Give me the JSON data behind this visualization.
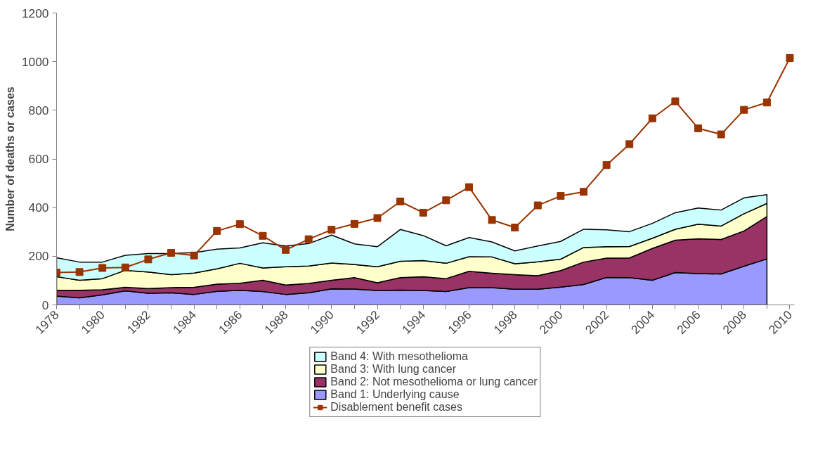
{
  "chart_data": {
    "type": "area",
    "stacked": true,
    "ylabel": "Number of deaths or cases",
    "x": [
      1978,
      1979,
      1980,
      1981,
      1982,
      1983,
      1984,
      1985,
      1986,
      1987,
      1988,
      1989,
      1990,
      1991,
      1992,
      1993,
      1994,
      1995,
      1996,
      1997,
      1998,
      1999,
      2000,
      2001,
      2002,
      2003,
      2004,
      2005,
      2006,
      2007,
      2008,
      2009
    ],
    "series": [
      {
        "name": "Band 1: Underlying cause",
        "color": "#9999ff",
        "values": [
          36,
          29,
          41,
          58,
          48,
          50,
          43,
          56,
          60,
          55,
          43,
          50,
          66,
          65,
          59,
          61,
          59,
          55,
          71,
          71,
          64,
          64,
          73,
          84,
          113,
          112,
          101,
          133,
          129,
          127,
          159,
          189
        ]
      },
      {
        "name": "Band 2: Not mesothelioma or lung cancer",
        "color": "#993366",
        "values": [
          25,
          31,
          21,
          14,
          19,
          21,
          29,
          29,
          29,
          46,
          39,
          38,
          35,
          47,
          32,
          51,
          57,
          53,
          67,
          59,
          60,
          56,
          68,
          92,
          79,
          81,
          131,
          133,
          143,
          142,
          145,
          174
        ]
      },
      {
        "name": "Band 3: With lung cancer",
        "color": "#ffffcc",
        "values": [
          55,
          41,
          46,
          70,
          68,
          53,
          59,
          63,
          82,
          51,
          75,
          72,
          71,
          54,
          66,
          67,
          66,
          63,
          60,
          67,
          45,
          57,
          47,
          60,
          47,
          47,
          42,
          45,
          60,
          55,
          71,
          54
        ]
      },
      {
        "name": "Band 4: With mesothelioma",
        "color": "#ccffff",
        "values": [
          78,
          75,
          68,
          62,
          76,
          87,
          84,
          81,
          63,
          103,
          85,
          92,
          115,
          85,
          82,
          131,
          103,
          72,
          79,
          62,
          53,
          65,
          73,
          75,
          70,
          61,
          61,
          68,
          66,
          66,
          65,
          36
        ]
      },
      {
        "name": "Disablement benefit cases",
        "type": "line",
        "marker": "square",
        "color": "#993300",
        "x": [
          1978,
          1979,
          1980,
          1981,
          1982,
          1983,
          1984,
          1985,
          1986,
          1987,
          1988,
          1989,
          1990,
          1991,
          1992,
          1993,
          1994,
          1995,
          1996,
          1997,
          1998,
          1999,
          2000,
          2001,
          2002,
          2003,
          2004,
          2005,
          2006,
          2007,
          2008,
          2009,
          2010
        ],
        "values": [
          133,
          135,
          152,
          154,
          187,
          214,
          203,
          304,
          332,
          284,
          226,
          270,
          309,
          333,
          357,
          425,
          379,
          430,
          484,
          349,
          318,
          409,
          448,
          465,
          575,
          661,
          767,
          837,
          726,
          701,
          802,
          832,
          1015
        ]
      }
    ],
    "xlim": [
      1978,
      2010.2
    ],
    "ylim": [
      0,
      1200
    ],
    "xticks": [
      1978,
      {
        "value": 1979,
        "label": null
      },
      1980,
      {
        "value": 1981,
        "label": null
      },
      1982,
      {
        "value": 1983,
        "label": null
      },
      1984,
      {
        "value": 1985,
        "label": null
      },
      1986,
      {
        "value": 1987,
        "label": null
      },
      1988,
      {
        "value": 1989,
        "label": null
      },
      1990,
      {
        "value": 1991,
        "label": null
      },
      1992,
      {
        "value": 1993,
        "label": null
      },
      1994,
      {
        "value": 1995,
        "label": null
      },
      1996,
      {
        "value": 1997,
        "label": null
      },
      1998,
      {
        "value": 1999,
        "label": null
      },
      2000,
      {
        "value": 2001,
        "label": null
      },
      2002,
      {
        "value": 2003,
        "label": null
      },
      2004,
      {
        "value": 2005,
        "label": null
      },
      2006,
      {
        "value": 2007,
        "label": null
      },
      2008,
      {
        "value": 2009,
        "label": null
      },
      2010
    ],
    "yticks": [
      0,
      200,
      400,
      600,
      800,
      1000,
      1200
    ],
    "grid": false,
    "legend": "bottom",
    "line_style": "solid"
  }
}
